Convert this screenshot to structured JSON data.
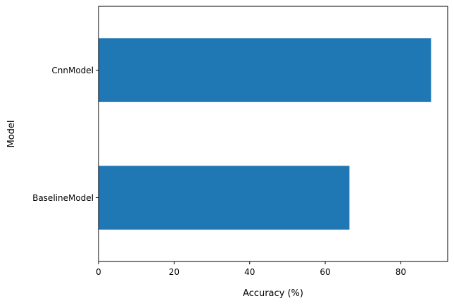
{
  "chart_data": {
    "type": "bar",
    "orientation": "horizontal",
    "categories": [
      "BaselineModel",
      "CnnModel"
    ],
    "values": [
      66.4,
      88.0
    ],
    "title": "",
    "xlabel": "Accuracy (%)",
    "ylabel": "Model",
    "xlim": [
      0,
      92.4
    ],
    "xticks": [
      0,
      20,
      40,
      60,
      80
    ],
    "grid": false,
    "legend": "none",
    "bar_color": "#1f77b4"
  }
}
